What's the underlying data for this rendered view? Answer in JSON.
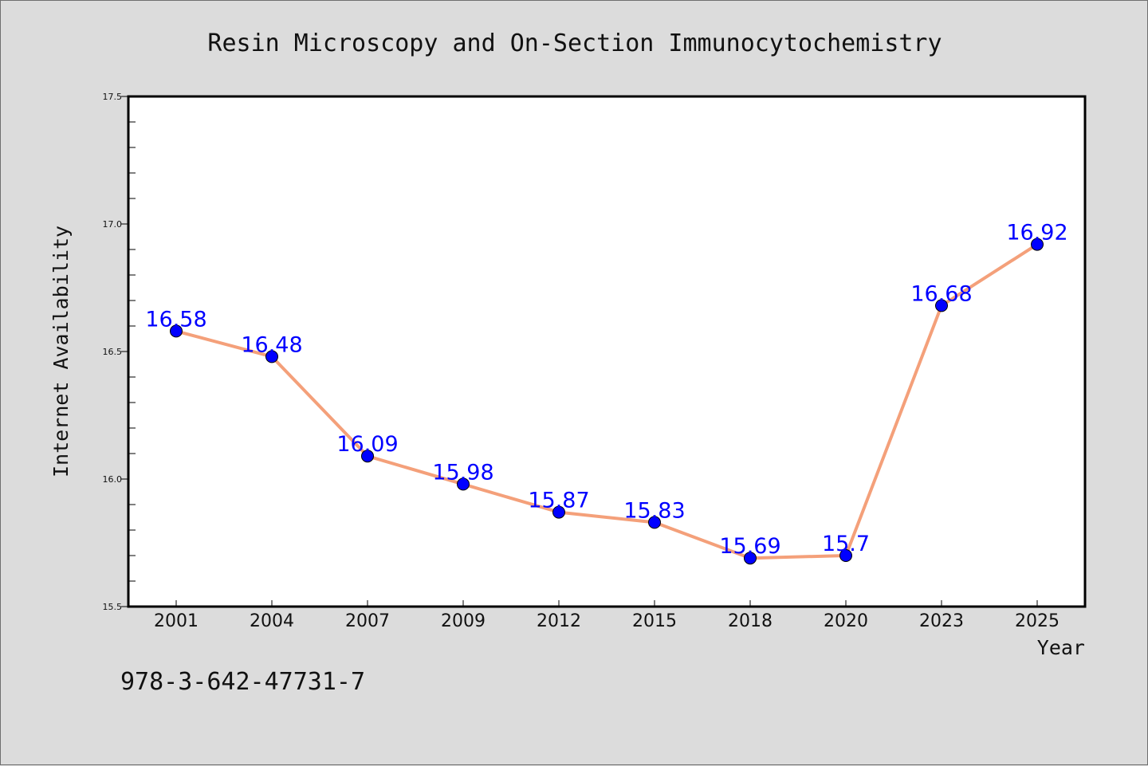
{
  "colors": {
    "background": "#dcdcdc",
    "plot_background": "#ffffff",
    "line": "#f4a07a",
    "marker": "#0000ff",
    "data_label": "#0000ff"
  },
  "footnote": "978-3-642-47731-7",
  "chart_data": {
    "type": "line",
    "title": "Resin Microscopy and On-Section Immunocytochemistry",
    "xlabel": "Year",
    "ylabel": "Internet Availability",
    "categories": [
      "2001",
      "2004",
      "2007",
      "2009",
      "2012",
      "2015",
      "2018",
      "2020",
      "2023",
      "2025"
    ],
    "series": [
      {
        "values": [
          16.58,
          16.48,
          16.09,
          15.98,
          15.87,
          15.83,
          15.69,
          15.7,
          16.68,
          16.92
        ],
        "labels": [
          "16.58",
          "16.48",
          "16.09",
          "15.98",
          "15.87",
          "15.83",
          "15.69",
          "15.7",
          "16.68",
          "16.92"
        ]
      }
    ],
    "ylim": [
      15.5,
      17.5
    ],
    "yticks": [
      "15.5",
      "16.0",
      "16.5",
      "17.0",
      "17.5"
    ],
    "grid": false,
    "legend": "none"
  }
}
